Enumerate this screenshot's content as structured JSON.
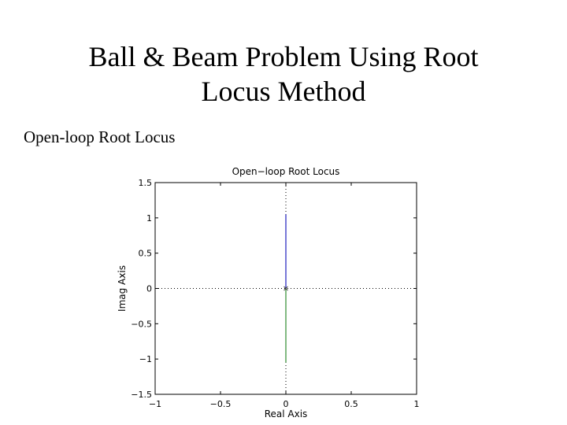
{
  "slide": {
    "title_line1": "Ball & Beam Problem Using Root",
    "title_line2": "Locus Method",
    "subtitle": "Open-loop Root Locus"
  },
  "chart_data": {
    "type": "line",
    "title": "Open−loop Root Locus",
    "xlabel": "Real Axis",
    "ylabel": "Imag Axis",
    "xlim": [
      -1,
      1
    ],
    "ylim": [
      -1.5,
      1.5
    ],
    "x_ticks": [
      -1,
      -0.5,
      0,
      0.5,
      1
    ],
    "x_tick_labels": [
      "−1",
      "−0.5",
      "0",
      "0.5",
      "1"
    ],
    "y_ticks": [
      -1.5,
      -1,
      -0.5,
      0,
      0.5,
      1,
      1.5
    ],
    "y_tick_labels": [
      "−1.5",
      "−1",
      "−0.5",
      "0",
      "0.5",
      "1",
      "1.5"
    ],
    "grid": "zero-lines dotted",
    "series": [
      {
        "color": "#1f1fbf",
        "x": [
          0,
          0
        ],
        "y": [
          0,
          1.05
        ]
      },
      {
        "color": "#2e8b2e",
        "x": [
          0,
          0
        ],
        "y": [
          0,
          -1.05
        ]
      }
    ],
    "poles": [
      {
        "x": 0,
        "y": 0,
        "marker": "x"
      }
    ]
  }
}
